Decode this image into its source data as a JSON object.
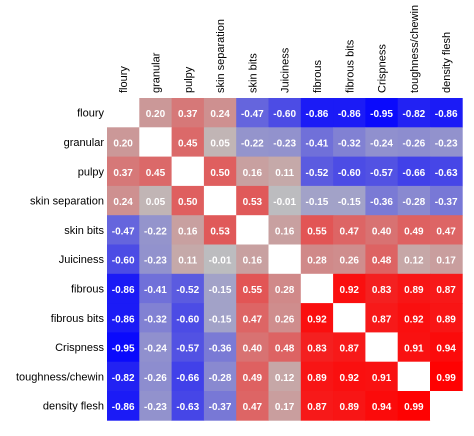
{
  "chart_data": {
    "type": "heatmap",
    "variables": [
      "floury",
      "granular",
      "pulpy",
      "skin separation",
      "skin bits",
      "Juiciness",
      "fibrous",
      "fibrous bits",
      "Crispness",
      "toughness/chewin",
      "density flesh"
    ],
    "matrix": [
      [
        null,
        0.2,
        0.37,
        0.24,
        -0.47,
        -0.6,
        -0.86,
        -0.86,
        -0.95,
        -0.82,
        -0.86
      ],
      [
        0.2,
        null,
        0.45,
        0.05,
        -0.22,
        -0.23,
        -0.41,
        -0.32,
        -0.24,
        -0.26,
        -0.23
      ],
      [
        0.37,
        0.45,
        null,
        0.5,
        0.16,
        0.11,
        -0.52,
        -0.6,
        -0.57,
        -0.66,
        -0.63
      ],
      [
        0.24,
        0.05,
        0.5,
        null,
        0.53,
        -0.01,
        -0.15,
        -0.15,
        -0.36,
        -0.28,
        -0.37
      ],
      [
        -0.47,
        -0.22,
        0.16,
        0.53,
        null,
        0.16,
        0.55,
        0.47,
        0.4,
        0.49,
        0.47
      ],
      [
        -0.6,
        -0.23,
        0.11,
        -0.01,
        0.16,
        null,
        0.28,
        0.26,
        0.48,
        0.12,
        0.17
      ],
      [
        -0.86,
        -0.41,
        -0.52,
        -0.15,
        0.55,
        0.28,
        null,
        0.92,
        0.83,
        0.89,
        0.87
      ],
      [
        -0.86,
        -0.32,
        -0.6,
        -0.15,
        0.47,
        0.26,
        0.92,
        null,
        0.87,
        0.92,
        0.89
      ],
      [
        -0.95,
        -0.24,
        -0.57,
        -0.36,
        0.4,
        0.48,
        0.83,
        0.87,
        null,
        0.91,
        0.94
      ],
      [
        -0.82,
        -0.26,
        -0.66,
        -0.28,
        0.49,
        0.12,
        0.89,
        0.92,
        0.91,
        null,
        0.99
      ],
      [
        -0.86,
        -0.23,
        -0.63,
        -0.37,
        0.47,
        0.17,
        0.87,
        0.89,
        0.94,
        0.99,
        null
      ]
    ],
    "hidden_labels": [
      [
        0,
        0
      ],
      [
        10,
        10
      ]
    ],
    "color_scale": {
      "min": -1,
      "mid": 0,
      "max": 1,
      "negative": "#0000ff",
      "neutral": "#bebebe",
      "positive": "#ff0000"
    },
    "diagonal_color": "#ffffff",
    "grid": false,
    "legend": "none"
  }
}
